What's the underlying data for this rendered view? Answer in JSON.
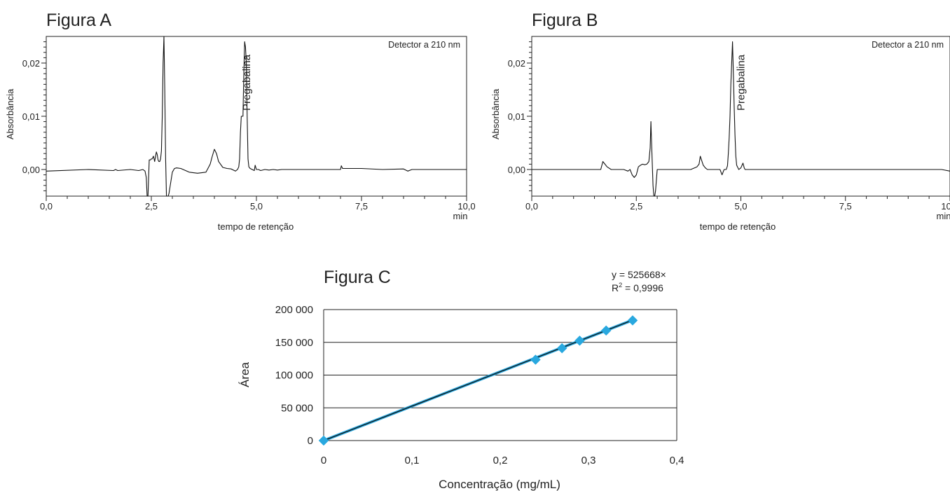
{
  "chart_data": [
    {
      "type": "line",
      "title": "Figura A",
      "xlabel": "tempo de retenção",
      "x_unit": "min",
      "ylabel": "Absorbância",
      "xlim": [
        0,
        10
      ],
      "ylim": [
        -0.005,
        0.025
      ],
      "x_ticks": [
        "0,0",
        "2,5",
        "5,0",
        "7,5",
        "10,0"
      ],
      "y_ticks": [
        "0,00",
        "0,01",
        "0,02"
      ],
      "x_tick_values": [
        0,
        2.5,
        5,
        7.5,
        10
      ],
      "y_tick_values": [
        0,
        0.01,
        0.02
      ],
      "annotation": "Detector a 210 nm",
      "peak_label": "Pregabalina",
      "peak_label_x": 4.85,
      "grid": false,
      "series": [
        {
          "x": [
            0,
            1.0,
            1.6,
            1.65,
            1.7,
            2.0,
            2.2,
            2.3,
            2.35,
            2.38,
            2.4,
            2.42,
            2.45,
            2.48,
            2.5,
            2.52,
            2.55,
            2.58,
            2.6,
            2.62,
            2.64,
            2.66,
            2.68,
            2.7,
            2.72,
            2.74,
            2.76,
            2.78,
            2.8,
            2.82,
            2.84,
            2.86,
            2.88,
            2.9,
            2.92,
            2.95,
            3.0,
            3.05,
            3.1,
            3.2,
            3.4,
            3.6,
            3.8,
            3.9,
            3.95,
            4.0,
            4.05,
            4.1,
            4.2,
            4.3,
            4.4,
            4.5,
            4.55,
            4.58,
            4.6,
            4.62,
            4.64,
            4.66,
            4.68,
            4.7,
            4.72,
            4.74,
            4.76,
            4.78,
            4.8,
            4.82,
            4.85,
            4.9,
            4.95,
            4.97,
            5.0,
            5.05,
            5.1,
            5.2,
            5.3,
            5.4,
            5.5,
            5.6,
            5.8,
            6.0,
            6.5,
            7.0,
            7.02,
            7.05,
            7.5,
            8.0,
            8.5,
            8.6,
            8.7,
            9.0,
            9.5,
            10.0
          ],
          "y": [
            -0.0003,
            0.0,
            -0.0002,
            0.0,
            -0.0002,
            0.0,
            -0.0002,
            0.0,
            -0.0003,
            -0.0015,
            -0.005,
            -0.006,
            0.0018,
            0.0018,
            0.002,
            0.002,
            0.0025,
            0.0015,
            0.0025,
            0.0033,
            0.0028,
            0.0018,
            0.0015,
            0.0015,
            0.002,
            0.0035,
            0.01,
            0.02,
            0.026,
            0.015,
            0.002,
            -0.008,
            -0.0066,
            -0.005,
            -0.0045,
            -0.003,
            -0.0005,
            0.0002,
            0.0003,
            0.0002,
            -0.0005,
            -0.0007,
            -0.0005,
            0.001,
            0.0025,
            0.0038,
            0.003,
            0.0015,
            0.0004,
            0.0002,
            0.0001,
            -0.0003,
            0.0,
            0.0005,
            0.002,
            0.007,
            0.01,
            0.01,
            0.01,
            0.018,
            0.024,
            0.023,
            0.02,
            0.01,
            0.002,
            0.0005,
            0.0002,
            0.0,
            -0.0002,
            0.0008,
            0.0,
            0.0,
            -0.0002,
            0.0,
            -0.0001,
            0.0,
            -0.0001,
            0.0,
            0.0,
            0.0,
            0.0,
            0.0,
            0.0007,
            0.0002,
            0.0002,
            0.0,
            0.0001,
            -0.0003,
            0.0,
            0.0,
            0.0,
            0.0
          ]
        }
      ]
    },
    {
      "type": "line",
      "title": "Figura B",
      "xlabel": "tempo de retenção",
      "x_unit": "min",
      "ylabel": "Absorbância",
      "xlim": [
        0,
        10
      ],
      "ylim": [
        -0.005,
        0.025
      ],
      "x_ticks": [
        "0,0",
        "2,5",
        "5,0",
        "7,5",
        "10,0"
      ],
      "y_ticks": [
        "0,00",
        "0,01",
        "0,02"
      ],
      "x_tick_values": [
        0,
        2.5,
        5,
        7.5,
        10
      ],
      "y_tick_values": [
        0,
        0.01,
        0.02
      ],
      "annotation": "Detector a 210 nm",
      "peak_label": "Pregabalina",
      "peak_label_x": 5.08,
      "grid": false,
      "series": [
        {
          "x": [
            0,
            1.0,
            1.6,
            1.65,
            1.7,
            1.75,
            1.8,
            1.9,
            2.0,
            2.2,
            2.3,
            2.35,
            2.4,
            2.45,
            2.5,
            2.55,
            2.6,
            2.65,
            2.7,
            2.75,
            2.8,
            2.83,
            2.85,
            2.87,
            2.9,
            2.92,
            2.94,
            2.96,
            3.0,
            3.1,
            3.3,
            3.5,
            3.6,
            3.8,
            3.95,
            4.0,
            4.03,
            4.05,
            4.1,
            4.15,
            4.2,
            4.5,
            4.55,
            4.6,
            4.65,
            4.68,
            4.7,
            4.72,
            4.74,
            4.76,
            4.78,
            4.8,
            4.82,
            4.84,
            4.86,
            4.88,
            4.9,
            4.95,
            5.0,
            5.05,
            5.08,
            5.1,
            5.15,
            5.2,
            6.0,
            7.0,
            8.0,
            9.0,
            9.8,
            10.0
          ],
          "y": [
            0.0,
            0.0,
            0.0,
            0.0,
            0.0015,
            0.001,
            0.0005,
            0.0,
            0.0,
            0.0,
            -0.0003,
            0.0,
            -0.001,
            -0.0015,
            -0.001,
            0.0005,
            0.0008,
            0.001,
            0.0009,
            0.001,
            0.0015,
            0.004,
            0.009,
            0.004,
            -0.003,
            -0.007,
            -0.006,
            -0.004,
            0.0,
            0.0,
            0.0,
            0.0,
            0.0,
            0.0,
            0.0005,
            0.001,
            0.0025,
            0.002,
            0.0008,
            0.0003,
            0.0,
            0.0,
            -0.001,
            0.0,
            0.0,
            0.0007,
            0.003,
            0.006,
            0.01,
            0.016,
            0.02,
            0.024,
            0.018,
            0.012,
            0.0065,
            0.0025,
            0.0008,
            0.0,
            0.0003,
            0.0012,
            0.0003,
            0.0,
            0.0,
            0.0,
            0.0,
            0.0,
            0.0,
            0.0,
            0.0,
            -0.0003
          ]
        }
      ]
    },
    {
      "type": "scatter",
      "title": "Figura C",
      "xlabel": "Concentração (mg/mL)",
      "ylabel": "Área",
      "xlim": [
        0,
        0.4
      ],
      "ylim": [
        0,
        200000
      ],
      "x_ticks": [
        "0",
        "0,1",
        "0,2",
        "0,3",
        "0,4"
      ],
      "y_ticks": [
        "0",
        "50 000",
        "100 000",
        "150 000",
        "200 000"
      ],
      "x_tick_values": [
        0,
        0.1,
        0.2,
        0.3,
        0.4
      ],
      "y_tick_values": [
        0,
        50000,
        100000,
        150000,
        200000
      ],
      "grid": true,
      "trendline": {
        "slope": 525668,
        "equation": "y = 525668×",
        "r2_prefix": "R",
        "r2_exp": "2",
        "r2_value": " = 0,9996"
      },
      "series": [
        {
          "marker_color": "#29a8df",
          "x": [
            0,
            0.24,
            0.27,
            0.29,
            0.32,
            0.35
          ],
          "y": [
            0,
            123500,
            141000,
            152500,
            168000,
            183500
          ]
        }
      ]
    }
  ]
}
